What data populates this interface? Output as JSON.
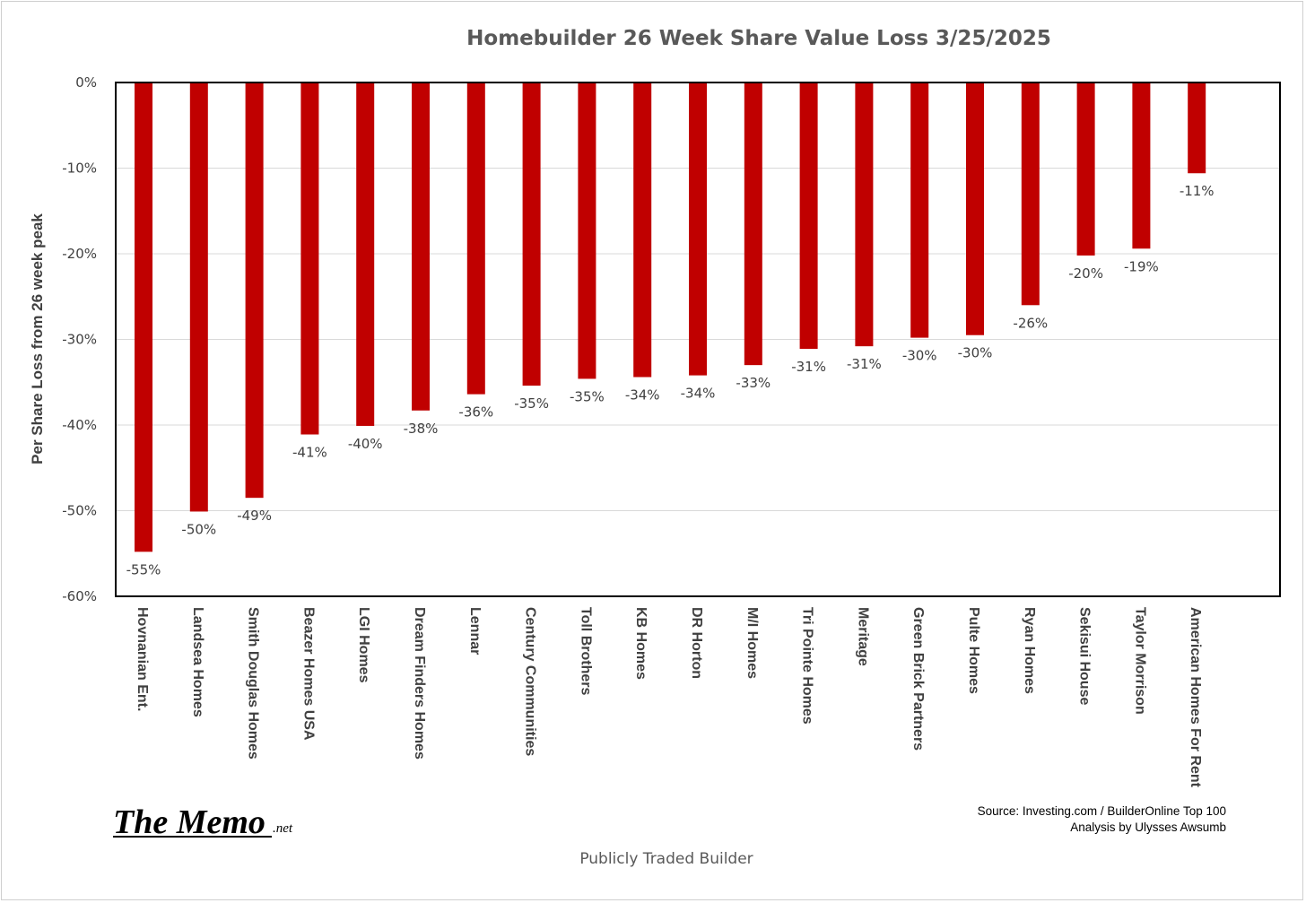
{
  "chart_data": {
    "type": "bar",
    "title": "Homebuilder 26 Week Share Value Loss 3/25/2025",
    "xlabel": "Publicly Traded Builder",
    "ylabel": "Per Share Loss from 26 week peak",
    "ylim": [
      -60,
      0
    ],
    "yticks": [
      0,
      -10,
      -20,
      -30,
      -40,
      -50,
      -60
    ],
    "ytick_labels": [
      "0%",
      "-10%",
      "-20%",
      "-30%",
      "-40%",
      "-50%",
      "-60%"
    ],
    "grid": true,
    "bar_color": "#C00000",
    "categories": [
      "Hovnanian Ent.",
      "Landsea Homes",
      "Smith Douglas Homes",
      "Beazer Homes USA",
      "LGI Homes",
      "Dream Finders Homes",
      "Lennar",
      "Century Communities",
      "Toll Brothers",
      "KB Homes",
      "DR Horton",
      "M/I Homes",
      "Tri Pointe Homes",
      "Meritage",
      "Green Brick Partners",
      "Pulte Homes",
      "Ryan Homes",
      "Sekisui House",
      "Taylor Morrison",
      "American Homes For Rent"
    ],
    "values": [
      -54.8,
      -50.1,
      -48.5,
      -41.1,
      -40.1,
      -38.3,
      -36.4,
      -35.4,
      -34.6,
      -34.4,
      -34.2,
      -33.0,
      -31.1,
      -30.8,
      -29.8,
      -29.5,
      -26.0,
      -20.2,
      -19.4,
      -10.6
    ],
    "data_labels": [
      "-55%",
      "-50%",
      "-49%",
      "-41%",
      "-40%",
      "-38%",
      "-36%",
      "-35%",
      "-35%",
      "-34%",
      "-34%",
      "-33%",
      "-31%",
      "-31%",
      "-30%",
      "-30%",
      "-26%",
      "-20%",
      "-19%",
      "-11%"
    ]
  },
  "footer": {
    "logo_main": "The Memo",
    "logo_suffix": ".net",
    "source_line1": "Source: Investing.com / BuilderOnline Top 100",
    "source_line2": "Analysis by Ulysses Awsumb"
  }
}
